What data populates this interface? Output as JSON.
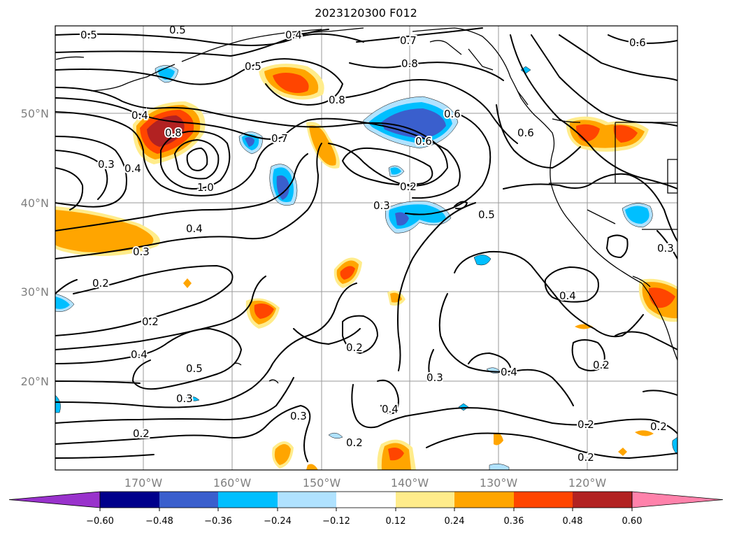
{
  "title": "2023120300 F012",
  "lat_ticks": [
    "50°N",
    "40°N",
    "30°N",
    "20°N"
  ],
  "lon_ticks": [
    "170°W",
    "160°W",
    "150°W",
    "140°W",
    "130°W",
    "120°W"
  ],
  "colorbar": {
    "ticks": [
      "−0.60",
      "−0.48",
      "−0.36",
      "−0.24",
      "−0.12",
      "0.12",
      "0.24",
      "0.36",
      "0.48",
      "0.60"
    ],
    "colors": [
      "#9932cc",
      "#00008b",
      "#3a5fcd",
      "#00bfff",
      "#b0e2ff",
      "#ffffff",
      "#ffec8b",
      "#ffa500",
      "#ff4500",
      "#b22222",
      "#ff82ab"
    ]
  },
  "contour_labels": [
    "0.5",
    "0.5",
    "0.4",
    "0.5",
    "0.7",
    "0.8",
    "0.8",
    "0.6",
    "0.6",
    "0.4",
    "0.8",
    "0.7",
    "0.6",
    "0.6",
    "0.3",
    "0.4",
    "1.0",
    "0.2",
    "0.3",
    "0.5",
    "0.4",
    "0.3",
    "0.3",
    "0.2",
    "0.4",
    "0.2",
    "0.4",
    "0.2",
    "0.5",
    "0.3",
    "0.4",
    "0.3",
    "0.3",
    "0.4",
    "0.2",
    "0.2",
    "0.2",
    "0.2",
    "0.2",
    "0.2"
  ]
}
